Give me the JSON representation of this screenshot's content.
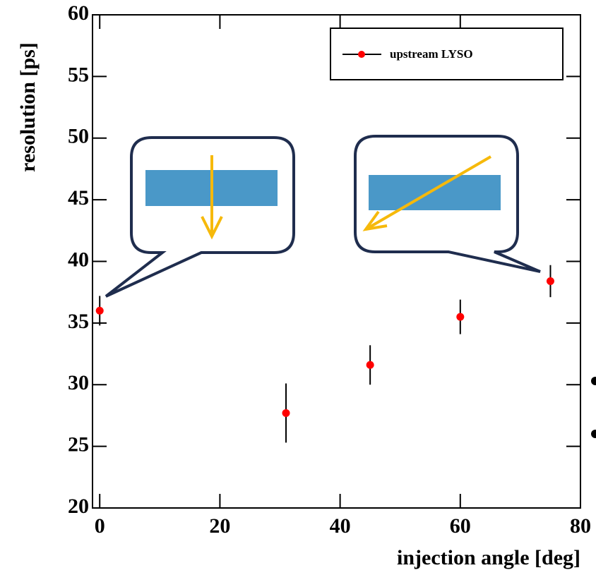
{
  "chart_data": {
    "type": "scatter",
    "x_label": "injection angle [deg]",
    "y_label": "resolution [ps]",
    "xlim": [
      -1.2,
      80
    ],
    "ylim": [
      20,
      60
    ],
    "xticks": [
      0,
      20,
      40,
      60,
      80
    ],
    "yticks": [
      20,
      25,
      30,
      35,
      40,
      45,
      50,
      55,
      60
    ],
    "legend": "top-right",
    "series": [
      {
        "name": "upstream LYSO",
        "color": "#ff0000",
        "x": [
          0,
          31,
          45,
          60,
          75
        ],
        "values": [
          36.0,
          27.7,
          31.6,
          35.5,
          38.4
        ],
        "errors": [
          1.2,
          2.4,
          1.6,
          1.4,
          1.3
        ]
      }
    ]
  }
}
